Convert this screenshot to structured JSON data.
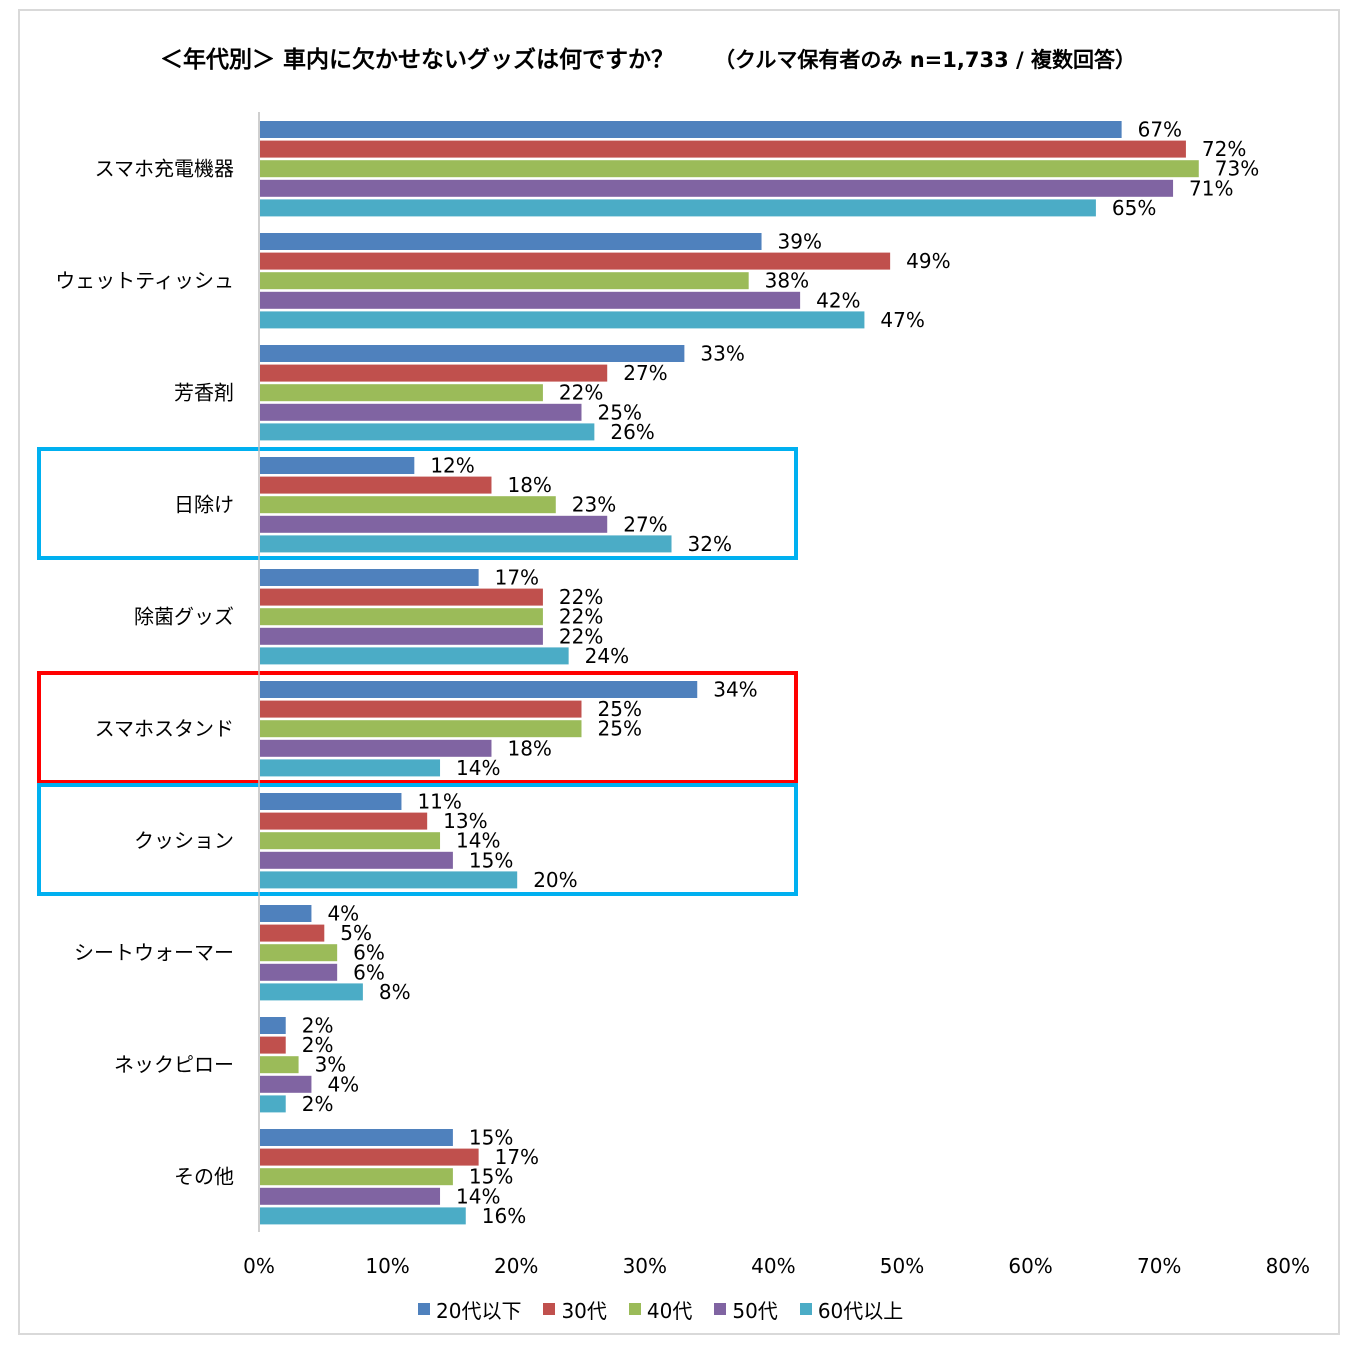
{
  "chart_data": {
    "type": "bar",
    "orientation": "horizontal",
    "title": "＜年代別＞ 車内に欠かせないグッズは何ですか？",
    "subtitle": "（クルマ保有者のみ n=1,733 / 複数回答）",
    "categories": [
      "スマホ充電機器",
      "ウェットティッシュ",
      "芳香剤",
      "日除け",
      "除菌グッズ",
      "スマホスタンド",
      "クッション",
      "シートウォーマー",
      "ネックピロー",
      "その他"
    ],
    "series": [
      {
        "name": "20代以下",
        "color": "#4f81bd",
        "values": [
          67,
          39,
          33,
          12,
          17,
          34,
          11,
          4,
          2,
          15
        ]
      },
      {
        "name": "30代",
        "color": "#c0504d",
        "values": [
          72,
          49,
          27,
          18,
          22,
          25,
          13,
          5,
          2,
          17
        ]
      },
      {
        "name": "40代",
        "color": "#9bbb59",
        "values": [
          73,
          38,
          22,
          23,
          22,
          25,
          14,
          6,
          3,
          15
        ]
      },
      {
        "name": "50代",
        "color": "#8064a2",
        "values": [
          71,
          42,
          25,
          27,
          22,
          18,
          15,
          6,
          4,
          14
        ]
      },
      {
        "name": "60代以上",
        "color": "#4bacc6",
        "values": [
          65,
          47,
          26,
          32,
          24,
          14,
          20,
          8,
          2,
          16
        ]
      }
    ],
    "xticks": [
      "0%",
      "10%",
      "20%",
      "30%",
      "40%",
      "50%",
      "60%",
      "70%",
      "80%"
    ],
    "xlim": [
      0,
      80
    ],
    "value_suffix": "%",
    "grid": false,
    "legend_position": "bottom",
    "highlights": [
      {
        "category": "日除け",
        "color": "#00b0f0"
      },
      {
        "category": "スマホスタンド",
        "color": "#ff0000"
      },
      {
        "category": "クッション",
        "color": "#00b0f0"
      }
    ]
  }
}
